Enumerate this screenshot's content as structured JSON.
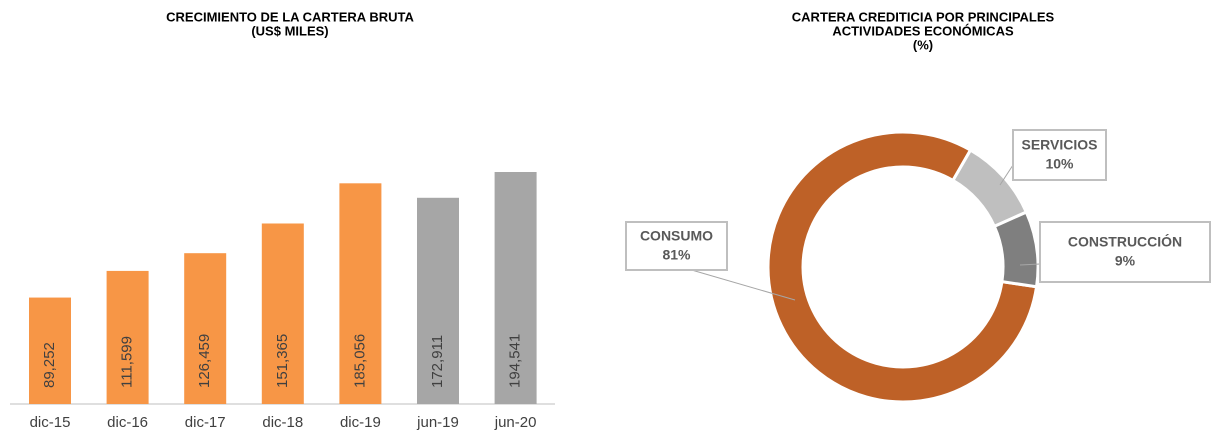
{
  "chart_data": [
    {
      "type": "bar",
      "title": [
        "CRECIMIENTO DE LA CARTERA BRUTA",
        "(US$ MILES)"
      ],
      "categories": [
        "dic-15",
        "dic-16",
        "dic-17",
        "dic-18",
        "dic-19",
        "jun-19",
        "jun-20"
      ],
      "values": [
        89252,
        111599,
        126459,
        151365,
        185056,
        172911,
        194541
      ],
      "value_labels": [
        "89,252",
        "111,599",
        "126,459",
        "151,365",
        "185,056",
        "172,911",
        "194,541"
      ],
      "colors": [
        "#F79646",
        "#F79646",
        "#F79646",
        "#F79646",
        "#F79646",
        "#A6A6A6",
        "#A6A6A6"
      ]
    },
    {
      "type": "pie",
      "title": [
        "CARTERA CREDITICIA POR PRINCIPALES",
        "ACTIVIDADES ECONÓMICAS",
        "(%)"
      ],
      "categories": [
        "CONSUMO",
        "SERVICIOS",
        "CONSTRUCCIÓN"
      ],
      "values": [
        81,
        10,
        9
      ],
      "value_labels": [
        "81%",
        "10%",
        "9%"
      ],
      "colors": [
        "#BE6127",
        "#BFBFBF",
        "#7F7F7F"
      ]
    }
  ]
}
